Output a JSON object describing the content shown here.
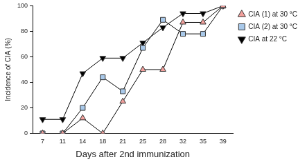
{
  "chart_data": {
    "type": "line",
    "x_label": "Days after 2nd immunization",
    "y_label": "Incidence of CIA (%)",
    "categories": [
      "7",
      "11",
      "14",
      "18",
      "21",
      "25",
      "28",
      "32",
      "35",
      "39"
    ],
    "series": [
      {
        "name": "CIA (1) at 30 °C",
        "color": "#f2a09c",
        "marker": "triangle",
        "values": [
          0,
          0,
          12,
          0,
          25,
          50,
          50,
          87,
          87,
          100
        ]
      },
      {
        "name": "CIA (2) at 30 °C",
        "color": "#a9c9ea",
        "marker": "square",
        "values": [
          0,
          0,
          20,
          44,
          33,
          67,
          89,
          78,
          78,
          100
        ]
      },
      {
        "name": "CIA at 22 °C",
        "color": "#000000",
        "marker": "triangle_down",
        "values": [
          11,
          11,
          47,
          59,
          59,
          71,
          83,
          94,
          94,
          100
        ]
      }
    ],
    "ylim": [
      0,
      100
    ],
    "yticks": [
      0,
      20,
      40,
      60,
      80,
      100
    ],
    "grid": false,
    "legend": "right"
  }
}
